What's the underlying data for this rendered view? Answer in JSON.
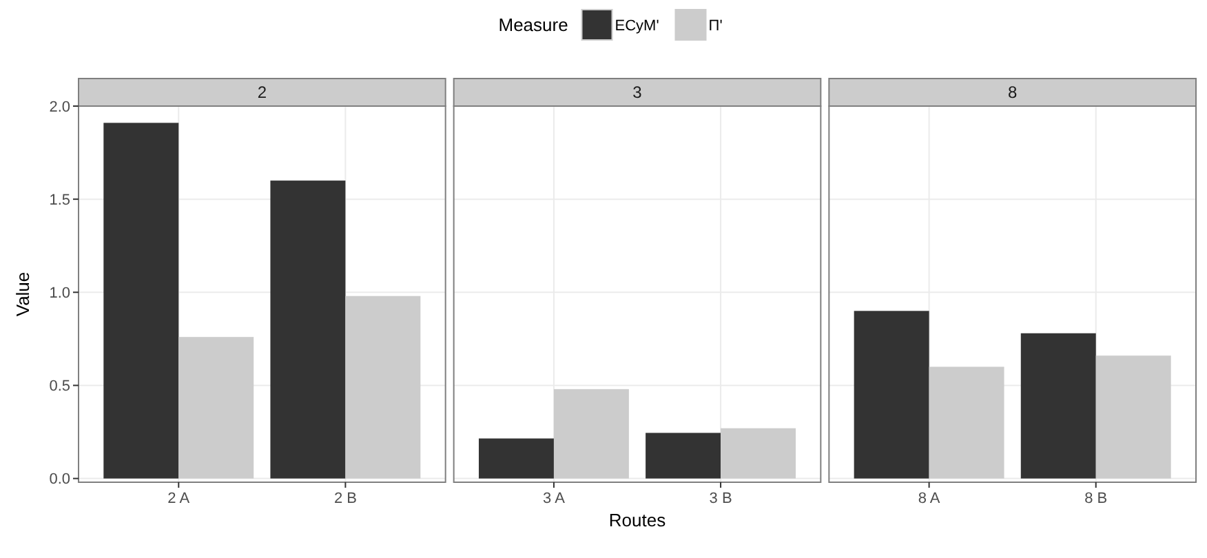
{
  "chart_data": [
    {
      "type": "bar",
      "title": "2",
      "ylabel": "Value",
      "legend_title": "Measure",
      "legend": "top",
      "categories": [
        "2 A",
        "2 B"
      ],
      "series": [
        {
          "name": "ECyM'",
          "color": "#333333",
          "values": [
            1.91,
            1.6
          ]
        },
        {
          "name": "Π'",
          "color": "#cccccc",
          "values": [
            0.76,
            0.98
          ]
        }
      ],
      "ylim": [
        -0.02,
        2.0
      ],
      "yticks": [
        {
          "value": 0,
          "label": "0.0"
        },
        0.5,
        {
          "value": 1,
          "label": "1.0"
        },
        1.5,
        {
          "value": 2,
          "label": "2.0"
        }
      ],
      "grid": true
    },
    {
      "type": "bar",
      "title": "3",
      "xlabel": "Routes",
      "categories": [
        "3 A",
        "3 B"
      ],
      "series": [
        {
          "color": "#333333",
          "values": [
            0.215,
            0.245
          ]
        },
        {
          "color": "#cccccc",
          "values": [
            0.48,
            0.27
          ]
        }
      ],
      "ylim": [
        -0.02,
        2.0
      ],
      "yticks": [
        0,
        0.5,
        1,
        1.5,
        2
      ],
      "grid": true,
      "tick_labels": "x"
    },
    {
      "type": "bar",
      "title": "8",
      "categories": [
        "8 A",
        "8 B"
      ],
      "series": [
        {
          "color": "#333333",
          "values": [
            0.9,
            0.78
          ]
        },
        {
          "color": "#cccccc",
          "values": [
            0.6,
            0.66
          ]
        }
      ],
      "ylim": [
        -0.02,
        2.0
      ],
      "yticks": [
        0,
        0.5,
        1,
        1.5,
        2
      ],
      "grid": true,
      "tick_labels": "x"
    }
  ]
}
